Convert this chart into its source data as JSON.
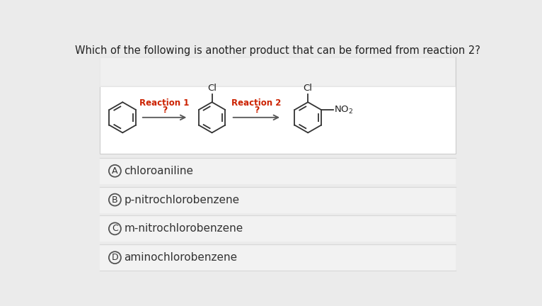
{
  "title": "Which of the following is another product that can be formed from reaction 2?",
  "title_fontsize": 10.5,
  "title_color": "#222222",
  "background_color": "#ebebeb",
  "reaction_box_bg": "#ffffff",
  "reaction_box_top_bg": "#e0e0e0",
  "reaction1_label": "Reaction 1",
  "reaction1_sublabel": "?",
  "reaction2_label": "Reaction 2",
  "reaction2_sublabel": "?",
  "reaction_label_color": "#cc2200",
  "options": [
    {
      "letter": "A",
      "text": "chloroaniline"
    },
    {
      "letter": "B",
      "text": "p-nitrochlorobenzene"
    },
    {
      "letter": "C",
      "text": "m-nitrochlorobenzene"
    },
    {
      "letter": "D",
      "text": "aminochlorobenzene"
    }
  ],
  "option_bg": "#f2f2f2",
  "option_text_color": "#333333",
  "option_letter_color": "#333333",
  "option_fontsize": 11,
  "circle_color": "#555555",
  "arrow_color": "#555555",
  "mol_line_color": "#333333"
}
